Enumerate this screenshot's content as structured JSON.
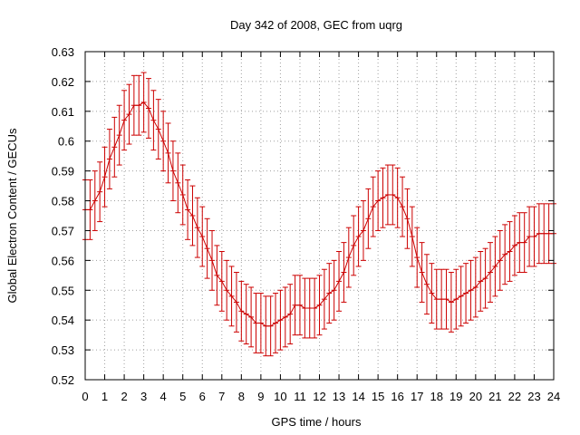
{
  "chart_data": {
    "type": "line",
    "title": "Day 342 of 2008, GEC from uqrg",
    "xlabel": "GPS time / hours",
    "ylabel": "Global Electron Content / GECUs",
    "xlim": [
      0,
      24
    ],
    "ylim": [
      0.52,
      0.63
    ],
    "x_ticks": [
      0,
      1,
      2,
      3,
      4,
      5,
      6,
      7,
      8,
      9,
      10,
      11,
      12,
      13,
      14,
      15,
      16,
      17,
      18,
      19,
      20,
      21,
      22,
      23,
      24
    ],
    "y_ticks": [
      0.52,
      0.53,
      0.54,
      0.55,
      0.56,
      0.57,
      0.58,
      0.59,
      0.6,
      0.61,
      0.62,
      0.63
    ],
    "y_tick_labels": [
      "0.52",
      "0.53",
      "0.54",
      "0.55",
      "0.56",
      "0.57",
      "0.58",
      "0.59",
      "0.6",
      "0.61",
      "0.62",
      "0.63"
    ],
    "grid": true,
    "series": [
      {
        "color": "#cc0000",
        "error": 0.01,
        "x": [
          0,
          0.25,
          0.5,
          0.75,
          1,
          1.25,
          1.5,
          1.75,
          2,
          2.25,
          2.5,
          2.75,
          3,
          3.25,
          3.5,
          3.75,
          4,
          4.25,
          4.5,
          4.75,
          5,
          5.25,
          5.5,
          5.75,
          6,
          6.25,
          6.5,
          6.75,
          7,
          7.25,
          7.5,
          7.75,
          8,
          8.25,
          8.5,
          8.75,
          9,
          9.25,
          9.5,
          9.75,
          10,
          10.25,
          10.5,
          10.75,
          11,
          11.25,
          11.5,
          11.75,
          12,
          12.25,
          12.5,
          12.75,
          13,
          13.25,
          13.5,
          13.75,
          14,
          14.25,
          14.5,
          14.75,
          15,
          15.25,
          15.5,
          15.75,
          16,
          16.25,
          16.5,
          16.75,
          17,
          17.25,
          17.5,
          17.75,
          18,
          18.25,
          18.5,
          18.75,
          19,
          19.25,
          19.5,
          19.75,
          20,
          20.25,
          20.5,
          20.75,
          21,
          21.25,
          21.5,
          21.75,
          22,
          22.25,
          22.5,
          22.75,
          23,
          23.25,
          23.5,
          23.75,
          24
        ],
        "y": [
          0.577,
          0.577,
          0.58,
          0.583,
          0.588,
          0.594,
          0.598,
          0.602,
          0.607,
          0.609,
          0.612,
          0.612,
          0.613,
          0.611,
          0.607,
          0.604,
          0.6,
          0.596,
          0.59,
          0.586,
          0.582,
          0.577,
          0.575,
          0.571,
          0.568,
          0.564,
          0.56,
          0.555,
          0.553,
          0.55,
          0.548,
          0.546,
          0.543,
          0.542,
          0.541,
          0.539,
          0.539,
          0.538,
          0.538,
          0.539,
          0.54,
          0.541,
          0.542,
          0.545,
          0.545,
          0.544,
          0.544,
          0.544,
          0.545,
          0.547,
          0.549,
          0.55,
          0.553,
          0.556,
          0.561,
          0.565,
          0.568,
          0.57,
          0.574,
          0.578,
          0.58,
          0.581,
          0.582,
          0.582,
          0.581,
          0.578,
          0.574,
          0.568,
          0.561,
          0.556,
          0.552,
          0.549,
          0.547,
          0.547,
          0.547,
          0.546,
          0.547,
          0.548,
          0.549,
          0.55,
          0.551,
          0.553,
          0.554,
          0.556,
          0.558,
          0.56,
          0.562,
          0.563,
          0.565,
          0.566,
          0.566,
          0.568,
          0.568,
          0.569,
          0.569,
          0.569,
          0.569
        ]
      }
    ]
  }
}
